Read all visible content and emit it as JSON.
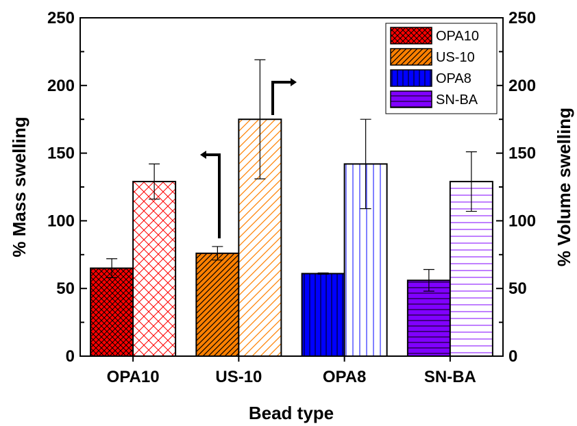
{
  "chart_data": {
    "type": "bar",
    "categories": [
      "OPA10",
      "US-10",
      "OPA8",
      "SN-BA"
    ],
    "series": [
      {
        "axis": "left",
        "values": [
          65,
          76,
          61,
          56
        ],
        "errors": [
          7,
          5,
          0.5,
          8
        ]
      },
      {
        "axis": "right",
        "values": [
          129,
          175,
          142,
          129
        ],
        "errors": [
          13,
          44,
          33,
          22
        ]
      }
    ],
    "category_colors": [
      "#ff0000",
      "#ff8000",
      "#0000ff",
      "#8000ff"
    ],
    "category_patterns": [
      "crosshatch",
      "diagonal",
      "vertical",
      "horizontal"
    ],
    "legend": {
      "entries": [
        "OPA10",
        "US-10",
        "OPA8",
        "SN-BA"
      ],
      "position": "top-right"
    },
    "xlabel": "Bead type",
    "ylabel": "% Mass swelling",
    "y2label": "% Volume swelling",
    "ylim": [
      0,
      250
    ],
    "y2lim": [
      0,
      250
    ],
    "yticks": [
      "0",
      "50",
      "100",
      "150",
      "200",
      "250"
    ],
    "y2ticks": [
      "0",
      "50",
      "100",
      "150",
      "200",
      "250"
    ],
    "grid": false
  }
}
